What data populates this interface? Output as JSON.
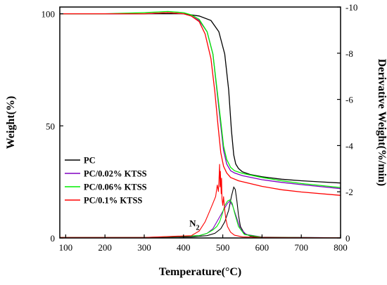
{
  "chart_data": {
    "type": "line",
    "xlabel": "Temperature(°C)",
    "ylabel_left": "Weight(%)",
    "ylabel_right": "Derivative Weight(%/min)",
    "xlim": [
      85,
      800
    ],
    "ylim_left": [
      0,
      103
    ],
    "ylim_right": [
      0,
      -10
    ],
    "x_ticks": [
      100,
      200,
      300,
      400,
      500,
      600,
      700,
      800
    ],
    "y_left_ticks": [
      0,
      50,
      100
    ],
    "y_right_ticks": [
      0,
      -2,
      -4,
      -6,
      -8,
      -10
    ],
    "grid": false,
    "legend_position": "left-center",
    "annotation": {
      "text": "N",
      "subscript": "2",
      "x": 415,
      "y_deriv": -0.5
    },
    "series": [
      {
        "name": "PC",
        "color": "#000000",
        "weight": {
          "x": [
            85,
            150,
            200,
            300,
            400,
            440,
            470,
            490,
            505,
            515,
            522,
            528,
            533,
            540,
            550,
            570,
            600,
            650,
            700,
            750,
            800
          ],
          "y": [
            100,
            100,
            100,
            100,
            100,
            99,
            97,
            92,
            82,
            66,
            48,
            37,
            33,
            31,
            29.5,
            28.3,
            27.3,
            26.2,
            25.5,
            25,
            24.5
          ]
        },
        "derivative": {
          "x": [
            85,
            300,
            420,
            460,
            480,
            495,
            505,
            515,
            522,
            528,
            532,
            536,
            540,
            545,
            555,
            570,
            600,
            800
          ],
          "y": [
            -0.02,
            -0.02,
            -0.05,
            -0.1,
            -0.2,
            -0.4,
            -0.7,
            -1.2,
            -1.8,
            -2.2,
            -2.1,
            -1.6,
            -1.0,
            -0.5,
            -0.2,
            -0.08,
            -0.02,
            -0.01
          ]
        }
      },
      {
        "name": "PC/0.02% KTSS",
        "color": "#8000c0",
        "weight": {
          "x": [
            85,
            150,
            200,
            300,
            360,
            400,
            420,
            440,
            460,
            475,
            485,
            495,
            502,
            510,
            520,
            530,
            550,
            600,
            650,
            700,
            800
          ],
          "y": [
            100,
            100,
            100,
            100,
            100.5,
            100,
            99,
            97,
            92,
            82,
            66,
            50,
            39,
            33,
            30,
            29,
            27.8,
            26,
            24.8,
            23.8,
            22
          ]
        },
        "derivative": {
          "x": [
            85,
            300,
            440,
            460,
            475,
            485,
            495,
            505,
            512,
            518,
            525,
            535,
            545,
            560,
            600,
            800
          ],
          "y": [
            -0.02,
            -0.02,
            -0.1,
            -0.2,
            -0.4,
            -0.7,
            -1.0,
            -1.3,
            -1.5,
            -1.6,
            -1.4,
            -0.9,
            -0.4,
            -0.15,
            -0.04,
            -0.01
          ]
        }
      },
      {
        "name": "PC/0.06% KTSS",
        "color": "#00ee00",
        "weight": {
          "x": [
            85,
            150,
            200,
            300,
            360,
            400,
            420,
            440,
            460,
            475,
            485,
            495,
            502,
            510,
            520,
            530,
            550,
            600,
            650,
            700,
            800
          ],
          "y": [
            100,
            100,
            100,
            100.5,
            101,
            100.5,
            99.5,
            97.5,
            92,
            82,
            67,
            52,
            41,
            35,
            31.5,
            30,
            28.8,
            27,
            25.5,
            24.3,
            22.5
          ]
        },
        "derivative": {
          "x": [
            85,
            300,
            440,
            460,
            475,
            485,
            492,
            498,
            505,
            512,
            518,
            524,
            530,
            540,
            555,
            600,
            800
          ],
          "y": [
            -0.02,
            -0.02,
            -0.1,
            -0.2,
            -0.35,
            -0.5,
            -0.7,
            -1.0,
            -1.4,
            -1.6,
            -1.65,
            -1.5,
            -1.1,
            -0.5,
            -0.15,
            -0.03,
            -0.01
          ]
        }
      },
      {
        "name": "PC/0.1% KTSS",
        "color": "#ff0000",
        "weight": {
          "x": [
            85,
            150,
            200,
            300,
            360,
            400,
            420,
            440,
            455,
            470,
            480,
            488,
            495,
            502,
            510,
            520,
            540,
            600,
            650,
            700,
            800
          ],
          "y": [
            100,
            100,
            100,
            100,
            100.5,
            100,
            99,
            96.5,
            91,
            80,
            65,
            50,
            38,
            32,
            29,
            27,
            25.5,
            23,
            21.5,
            20.5,
            19
          ]
        },
        "derivative": {
          "x": [
            85,
            300,
            420,
            440,
            455,
            465,
            475,
            482,
            486,
            489,
            491,
            492,
            493,
            494,
            495,
            496,
            497,
            498,
            500,
            502,
            505,
            508,
            512,
            520,
            530,
            550,
            600,
            800
          ],
          "y": [
            -0.02,
            -0.02,
            -0.1,
            -0.3,
            -0.7,
            -1.1,
            -1.5,
            -1.8,
            -2.3,
            -2.0,
            -2.8,
            -3.2,
            -2.2,
            -2.9,
            -2.4,
            -1.9,
            -2.6,
            -1.7,
            -1.4,
            -1.8,
            -1.2,
            -0.8,
            -0.5,
            -0.25,
            -0.12,
            -0.05,
            -0.02,
            -0.01
          ]
        }
      }
    ]
  }
}
